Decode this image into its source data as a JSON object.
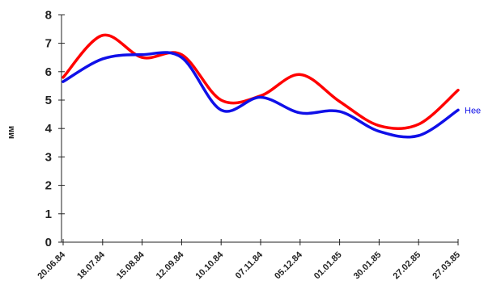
{
  "chart_data": {
    "type": "line",
    "ylabel": "мм",
    "xlabel": "",
    "ylim": [
      0,
      8
    ],
    "yticks": [
      0,
      1,
      2,
      3,
      4,
      5,
      6,
      7,
      8
    ],
    "categories": [
      "20.06.84",
      "18.07.84",
      "15.08.84",
      "12.09.84",
      "10.10.84",
      "07.11.84",
      "05.12.84",
      "01.01.85",
      "30.01.85",
      "27.02.85",
      "27.03.85"
    ],
    "series": [
      {
        "name": "",
        "color": "#ff0000",
        "values": [
          5.8,
          7.28,
          6.5,
          6.6,
          5.0,
          5.15,
          5.9,
          4.95,
          4.1,
          4.15,
          5.35
        ]
      },
      {
        "name": "Нее",
        "color": "#1010e8",
        "values": [
          5.65,
          6.45,
          6.6,
          6.5,
          4.65,
          5.1,
          4.55,
          4.6,
          3.9,
          3.75,
          4.65
        ]
      }
    ],
    "legend": "right"
  }
}
